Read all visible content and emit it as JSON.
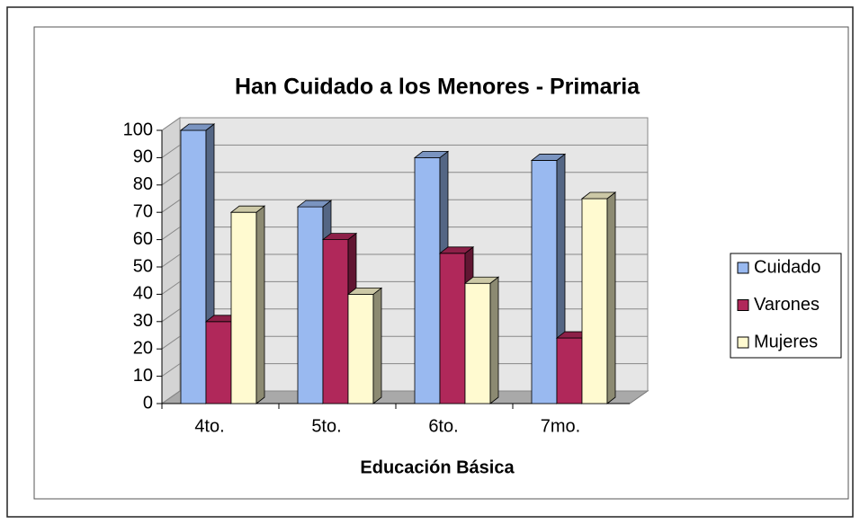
{
  "chart_data": {
    "type": "bar3d",
    "title": "Han Cuidado a los Menores - Primaria",
    "x_label": "Educación Básica",
    "categories": [
      "4to.",
      "5to.",
      "6to.",
      "7mo."
    ],
    "series": [
      {
        "name": "Cuidado",
        "color": "#99b9f0",
        "values": [
          100,
          72,
          90,
          89
        ]
      },
      {
        "name": "Varones",
        "color": "#b0285a",
        "values": [
          30,
          60,
          55,
          24
        ]
      },
      {
        "name": "Mujeres",
        "color": "#fffad0",
        "values": [
          70,
          40,
          44,
          75
        ]
      }
    ],
    "ylim": [
      0,
      100
    ],
    "yticks": [
      0,
      10,
      20,
      30,
      40,
      50,
      60,
      70,
      80,
      90,
      100
    ],
    "grid": true,
    "legend": "right"
  }
}
